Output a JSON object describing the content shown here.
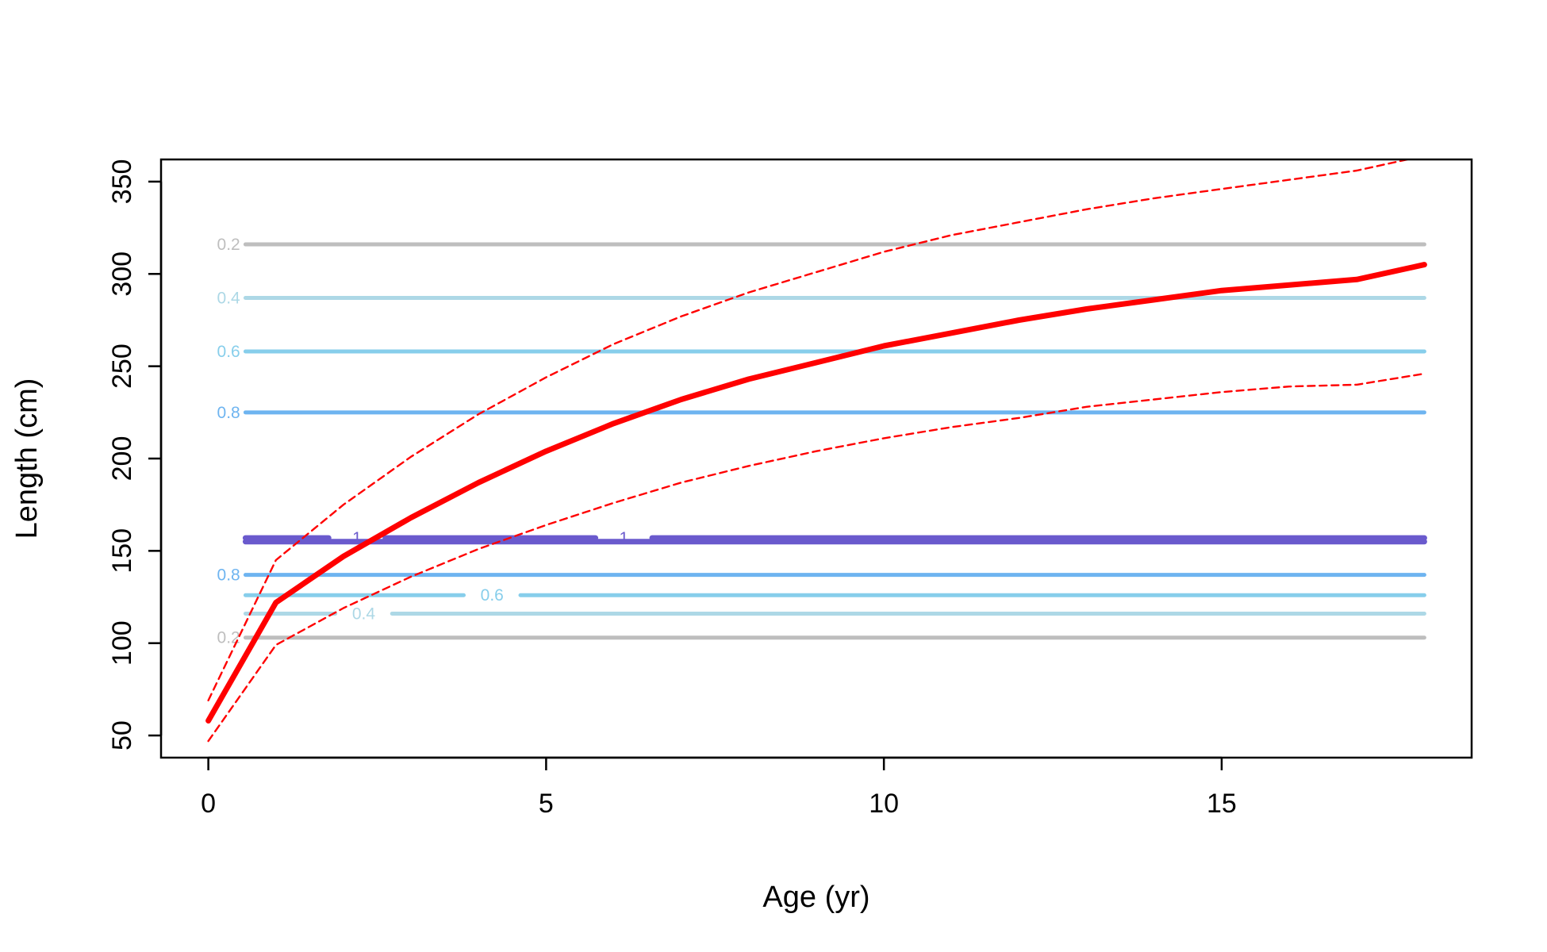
{
  "chart_data": {
    "type": "line",
    "title": "",
    "xlabel": "Age (yr)",
    "ylabel": "Length (cm)",
    "xlim": [
      -0.7,
      18.7
    ],
    "ylim": [
      38,
      362
    ],
    "x_ticks": [
      0,
      5,
      10,
      15
    ],
    "y_ticks": [
      50,
      100,
      150,
      200,
      250,
      300,
      350
    ],
    "grid": false,
    "legend": "none",
    "series": [
      {
        "style": "solid-thick",
        "color": "#ff0000",
        "x": [
          0,
          1,
          2,
          3,
          4,
          5,
          6,
          7,
          8,
          9,
          10,
          11,
          12,
          13,
          14,
          15,
          16,
          17,
          18
        ],
        "y": [
          58,
          122,
          147,
          168,
          187,
          204,
          219,
          232,
          243,
          252,
          261,
          268,
          275,
          281,
          286,
          291,
          294,
          297,
          305
        ]
      },
      {
        "style": "dashed",
        "color": "#ff0000",
        "x": [
          0,
          1,
          2,
          3,
          4,
          5,
          6,
          7,
          8,
          9,
          10,
          11,
          12,
          13,
          14,
          15,
          16,
          17,
          18
        ],
        "y": [
          69,
          145,
          175,
          201,
          224,
          244,
          262,
          277,
          290,
          301,
          312,
          321,
          328,
          335,
          341,
          346,
          351,
          356,
          364
        ]
      },
      {
        "style": "dashed",
        "color": "#ff0000",
        "x": [
          0,
          1,
          2,
          3,
          4,
          5,
          6,
          7,
          8,
          9,
          10,
          11,
          12,
          13,
          14,
          15,
          16,
          17,
          18
        ],
        "y": [
          47,
          99,
          119,
          136,
          151,
          164,
          176,
          187,
          196,
          204,
          211,
          217,
          222,
          228,
          232,
          236,
          239,
          240,
          246
        ]
      }
    ],
    "contours": [
      {
        "level": "0.2",
        "y": 316,
        "color": "#bebebe",
        "labels": [
          {
            "x": 0.3
          }
        ]
      },
      {
        "level": "0.4",
        "y": 287,
        "color": "#add8e6",
        "labels": [
          {
            "x": 0.3
          }
        ]
      },
      {
        "level": "0.6",
        "y": 258,
        "color": "#87ceeb",
        "labels": [
          {
            "x": 0.3
          }
        ]
      },
      {
        "level": "0.8",
        "y": 225,
        "color": "#6eb4f0",
        "labels": [
          {
            "x": 0.3
          }
        ]
      },
      {
        "level": "1",
        "y": 157,
        "color": "#6a5acd",
        "labels": [
          {
            "x": 2.2
          },
          {
            "x": 6.15
          }
        ]
      },
      {
        "level": "1",
        "y": 155,
        "color": "#6a5acd",
        "labels": []
      },
      {
        "level": "0.8",
        "y": 137,
        "color": "#6eb4f0",
        "labels": [
          {
            "x": 0.3
          }
        ]
      },
      {
        "level": "0.6",
        "y": 126,
        "color": "#87ceeb",
        "labels": [
          {
            "x": 4.2
          }
        ]
      },
      {
        "level": "0.4",
        "y": 116,
        "color": "#add8e6",
        "labels": [
          {
            "x": 2.3
          }
        ]
      },
      {
        "level": "0.2",
        "y": 103,
        "color": "#bebebe",
        "labels": [
          {
            "x": 0.3
          }
        ]
      }
    ],
    "contour_x_range": [
      0.55,
      18
    ]
  }
}
